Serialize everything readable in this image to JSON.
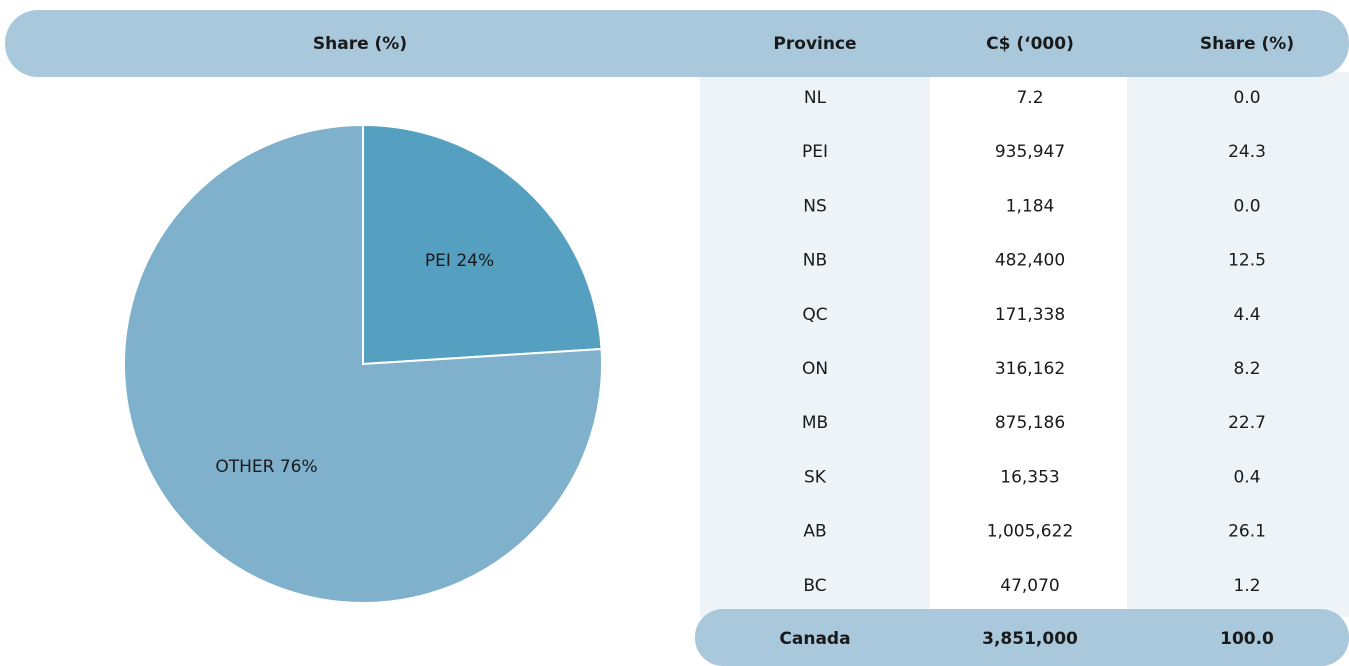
{
  "chart_data": {
    "type": "pie",
    "title": "Share (%)",
    "categories": [
      "PEI",
      "OTHER"
    ],
    "values": [
      24,
      76
    ],
    "value_labels": [
      "PEI 24%",
      "OTHER 76%"
    ],
    "colors": [
      "#559fc0",
      "#7fb0cc"
    ]
  },
  "table": {
    "header": [
      "Province",
      "C$ (‘000)",
      "Share (%)"
    ],
    "rows": [
      [
        "NL",
        "7.2",
        "0.0"
      ],
      [
        "PEI",
        "935,947",
        "24.3"
      ],
      [
        "NS",
        "1,184",
        "0.0"
      ],
      [
        "NB",
        "482,400",
        "12.5"
      ],
      [
        "QC",
        "171,338",
        "4.4"
      ],
      [
        "ON",
        "316,162",
        "8.2"
      ],
      [
        "MB",
        "875,186",
        "22.7"
      ],
      [
        "SK",
        "16,353",
        "0.4"
      ],
      [
        "AB",
        "1,005,622",
        "26.1"
      ],
      [
        "BC",
        "47,070",
        "1.2"
      ]
    ],
    "footer": [
      "Canada",
      "3,851,000",
      "100.0"
    ]
  }
}
